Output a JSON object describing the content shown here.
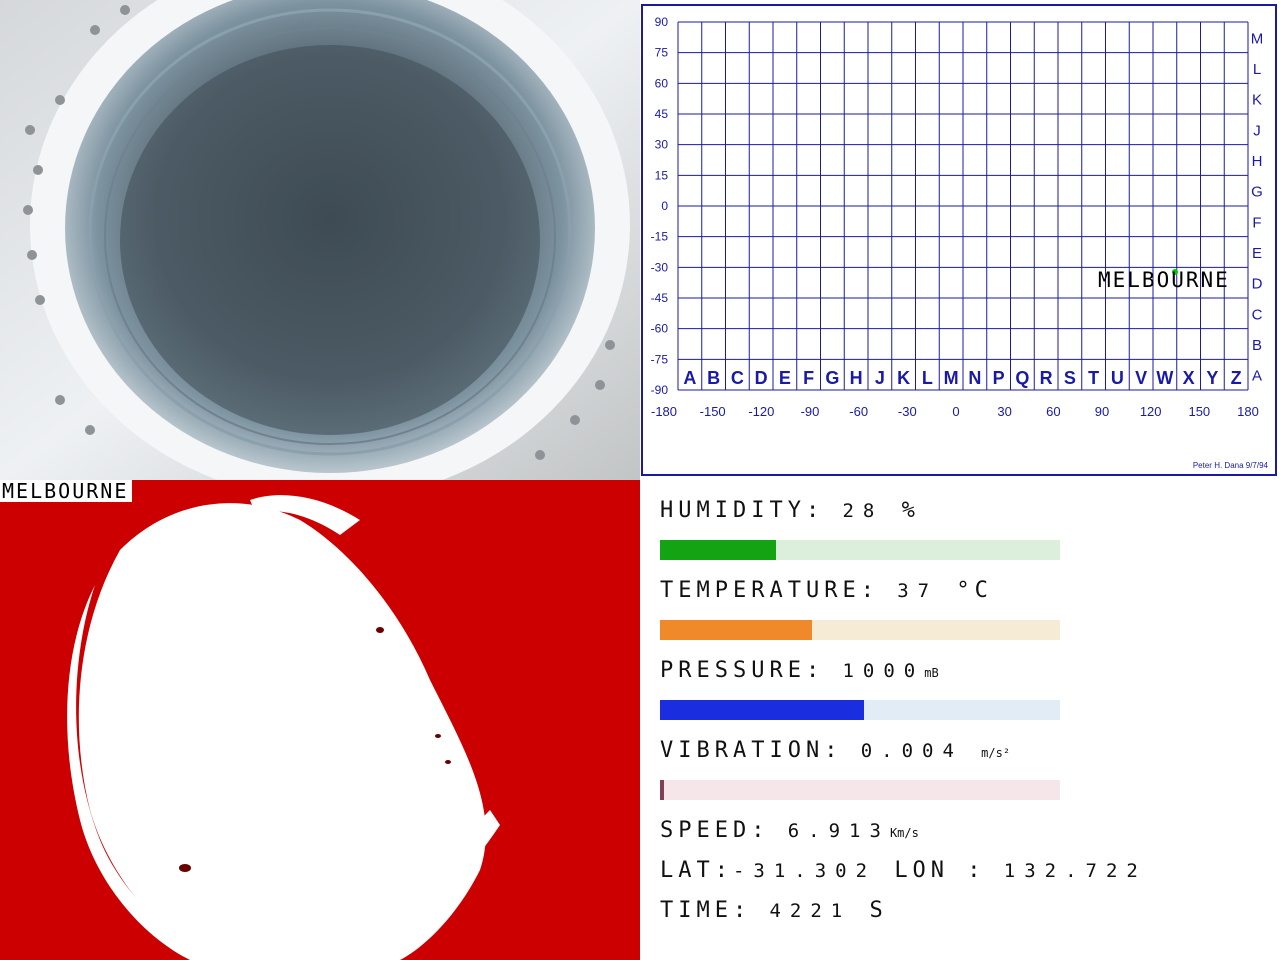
{
  "camera": {
    "icon": "camera-feed-image"
  },
  "map": {
    "y_ticks": [
      "90",
      "75",
      "60",
      "45",
      "30",
      "15",
      "0",
      "-15",
      "-30",
      "-45",
      "-60",
      "-75",
      "-90"
    ],
    "x_ticks": [
      "-180",
      "-150",
      "-120",
      "-90",
      "-60",
      "-30",
      "0",
      "30",
      "60",
      "90",
      "120",
      "150",
      "180"
    ],
    "col_letters": [
      "A",
      "B",
      "C",
      "D",
      "E",
      "F",
      "G",
      "H",
      "J",
      "K",
      "L",
      "M",
      "N",
      "P",
      "Q",
      "R",
      "S",
      "T",
      "U",
      "V",
      "W",
      "X",
      "Y",
      "Z"
    ],
    "row_letters": [
      "M",
      "L",
      "K",
      "J",
      "H",
      "G",
      "F",
      "E",
      "D",
      "C",
      "B",
      "A"
    ],
    "location_label": "MELBOURNE",
    "credit": "Peter H. Dana 9/7/94",
    "marker_color": "#00cc00",
    "grid_color": "#1a1aa6"
  },
  "mask": {
    "label": "MELBOURNE",
    "mask_color": "#cc0000"
  },
  "telemetry": {
    "humidity": {
      "label": "HUMIDITY:",
      "value": "28",
      "unit": "%",
      "fraction": 0.29,
      "color": "#13a313",
      "track": "#dcefdc"
    },
    "temperature": {
      "label": "TEMPERATURE:",
      "value": "37",
      "unit": "°C",
      "fraction": 0.38,
      "color": "#f0892a",
      "track": "#f6ecd6"
    },
    "pressure": {
      "label": "PRESSURE:",
      "value": "1000",
      "unit": "mB",
      "fraction": 0.51,
      "color": "#1a2ee0",
      "track": "#e2ecf6"
    },
    "vibration": {
      "label": "VIBRATION:",
      "value": "0.004",
      "unit": "m/s²",
      "fraction": 0.01,
      "color": "#80405a",
      "track": "#f6e6ea"
    },
    "speed": {
      "label": "SPEED:",
      "value": "6.913",
      "unit": "Km/s"
    },
    "lat": {
      "label": "LAT:",
      "value": "-31.302"
    },
    "lon": {
      "label": "LON :",
      "value": "132.722"
    },
    "time": {
      "label": "TIME:",
      "value": "4221",
      "unit": "S"
    }
  }
}
